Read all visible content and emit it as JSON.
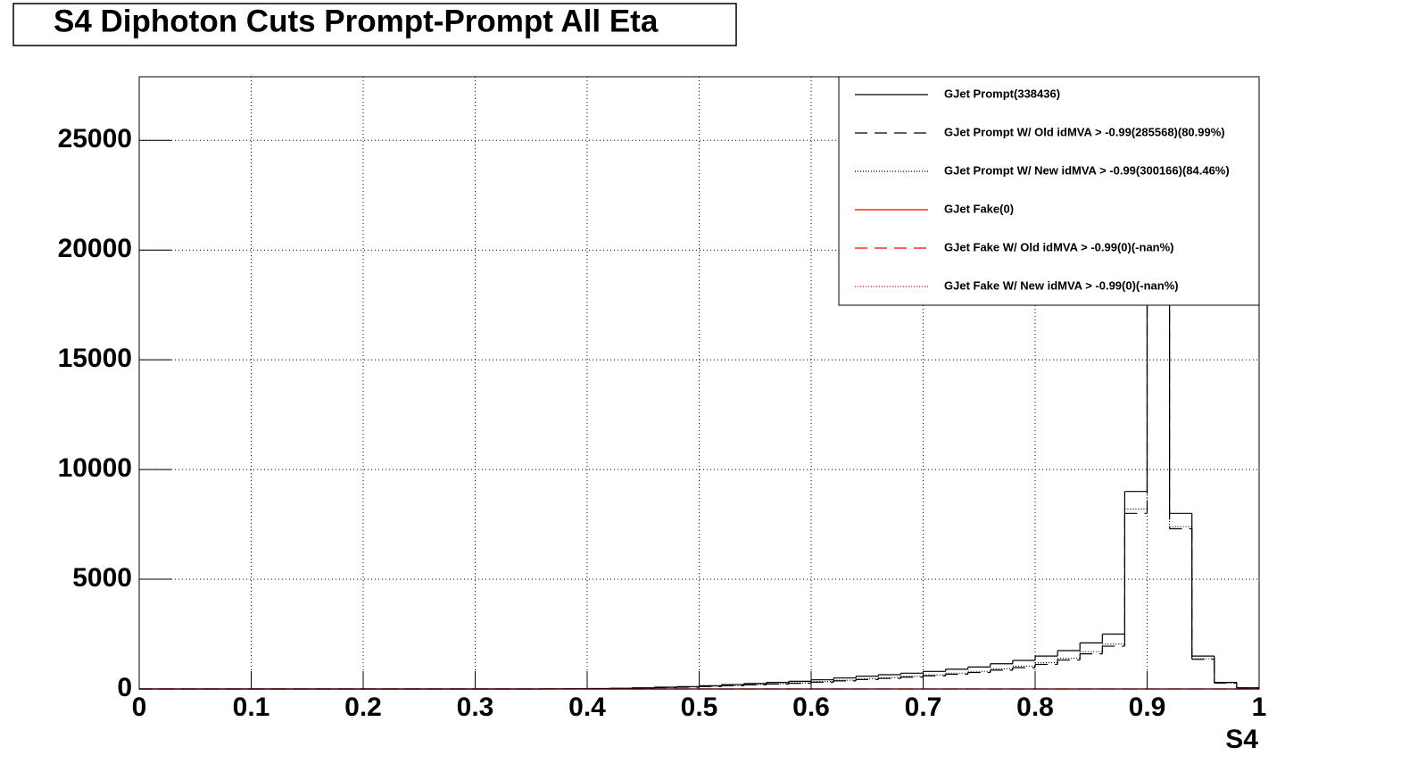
{
  "chart_data": {
    "type": "histogram",
    "title": "S4 Diphoton Cuts Prompt-Prompt All Eta",
    "x_label": "S4",
    "bins": [
      0,
      0.02,
      0.04,
      0.06,
      0.08,
      0.1,
      0.12,
      0.14,
      0.16,
      0.18,
      0.2,
      0.22,
      0.24,
      0.26,
      0.28,
      0.3,
      0.32,
      0.34,
      0.36,
      0.38,
      0.4,
      0.42,
      0.44,
      0.46,
      0.48,
      0.5,
      0.52,
      0.54,
      0.56,
      0.58,
      0.6,
      0.62,
      0.64,
      0.66,
      0.68,
      0.7,
      0.72,
      0.74,
      0.76,
      0.78,
      0.8,
      0.82,
      0.84,
      0.86,
      0.88,
      0.9,
      0.92,
      0.94,
      0.96,
      0.98,
      1
    ],
    "series": [
      {
        "name": "GJet Prompt(338436)",
        "color": "#000000",
        "linestyle": "solid",
        "values": [
          0,
          0,
          0,
          0,
          0,
          0,
          0,
          0,
          0,
          0,
          0,
          0,
          0,
          0,
          0,
          0,
          0,
          0,
          5,
          10,
          20,
          30,
          50,
          80,
          110,
          150,
          200,
          250,
          300,
          350,
          420,
          500,
          580,
          650,
          720,
          800,
          900,
          1000,
          1150,
          1300,
          1500,
          1750,
          2100,
          2500,
          9000,
          26000,
          8000,
          1500,
          300,
          50
        ]
      },
      {
        "name": "GJet Prompt W/ Old idMVA > -0.99(285568)(80.99%)",
        "color": "#000000",
        "linestyle": "dashed",
        "values": [
          0,
          0,
          0,
          0,
          0,
          0,
          0,
          0,
          0,
          0,
          0,
          0,
          0,
          0,
          0,
          0,
          0,
          0,
          4,
          7,
          15,
          22,
          37,
          60,
          80,
          110,
          150,
          185,
          225,
          260,
          310,
          370,
          430,
          480,
          540,
          600,
          670,
          750,
          860,
          970,
          1120,
          1320,
          1600,
          1950,
          8000,
          23500,
          7300,
          1350,
          270,
          45
        ]
      },
      {
        "name": "GJet Prompt W/ New idMVA > -0.99(300166)(84.46%)",
        "color": "#000000",
        "linestyle": "dotted",
        "values": [
          0,
          0,
          0,
          0,
          0,
          0,
          0,
          0,
          0,
          0,
          0,
          0,
          0,
          0,
          0,
          0,
          0,
          0,
          4,
          8,
          16,
          24,
          40,
          64,
          88,
          120,
          160,
          200,
          240,
          280,
          335,
          400,
          465,
          520,
          580,
          640,
          720,
          800,
          920,
          1040,
          1200,
          1400,
          1700,
          2050,
          8200,
          24000,
          7400,
          1380,
          280,
          46
        ]
      },
      {
        "name": "GJet Fake(0)",
        "color": "#ff0000",
        "linestyle": "solid",
        "values": [
          0,
          0,
          0,
          0,
          0,
          0,
          0,
          0,
          0,
          0,
          0,
          0,
          0,
          0,
          0,
          0,
          0,
          0,
          0,
          0,
          0,
          0,
          0,
          0,
          0,
          0,
          0,
          0,
          0,
          0,
          0,
          0,
          0,
          0,
          0,
          0,
          0,
          0,
          0,
          0,
          0,
          0,
          0,
          0,
          0,
          0,
          0,
          0,
          0,
          0
        ]
      },
      {
        "name": "GJet Fake W/ Old idMVA > -0.99(0)(-nan%)",
        "color": "#ff0000",
        "linestyle": "dashed",
        "values": [
          0,
          0,
          0,
          0,
          0,
          0,
          0,
          0,
          0,
          0,
          0,
          0,
          0,
          0,
          0,
          0,
          0,
          0,
          0,
          0,
          0,
          0,
          0,
          0,
          0,
          0,
          0,
          0,
          0,
          0,
          0,
          0,
          0,
          0,
          0,
          0,
          0,
          0,
          0,
          0,
          0,
          0,
          0,
          0,
          0,
          0,
          0,
          0,
          0,
          0
        ]
      },
      {
        "name": "GJet Fake W/ New idMVA > -0.99(0)(-nan%)",
        "color": "#ff0000",
        "linestyle": "dotted",
        "values": [
          0,
          0,
          0,
          0,
          0,
          0,
          0,
          0,
          0,
          0,
          0,
          0,
          0,
          0,
          0,
          0,
          0,
          0,
          0,
          0,
          0,
          0,
          0,
          0,
          0,
          0,
          0,
          0,
          0,
          0,
          0,
          0,
          0,
          0,
          0,
          0,
          0,
          0,
          0,
          0,
          0,
          0,
          0,
          0,
          0,
          0,
          0,
          0,
          0,
          0
        ]
      }
    ],
    "xlim": [
      0,
      1
    ],
    "xticks": [
      0,
      0.1,
      0.2,
      0.3,
      0.4,
      0.5,
      0.6,
      0.7,
      0.8,
      0.9,
      1
    ],
    "ylim": [
      0,
      27900
    ],
    "yticks": [
      0,
      5000,
      10000,
      15000,
      20000,
      25000
    ],
    "grid": true,
    "legend": "top-right"
  }
}
